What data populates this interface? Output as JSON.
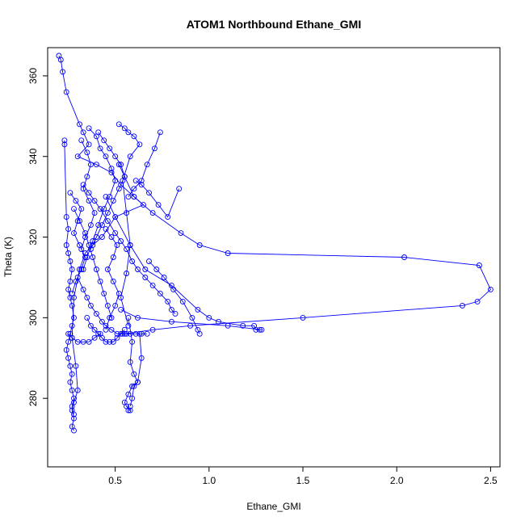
{
  "chart_data": {
    "type": "line",
    "title": "ATOM1 Northbound Ethane_GMI",
    "xlabel": "Ethane_GMI",
    "ylabel": "Theta (K)",
    "xlim": [
      0.14,
      2.55
    ],
    "ylim": [
      263,
      367
    ],
    "xticks": [
      0.5,
      1.0,
      1.5,
      2.0,
      2.5
    ],
    "xtick_labels": [
      "0.5",
      "1.0",
      "1.5",
      "2.0",
      "2.5"
    ],
    "yticks": [
      280,
      300,
      320,
      340,
      360
    ],
    "ytick_labels": [
      "280",
      "300",
      "320",
      "340",
      "360"
    ],
    "grid": false,
    "legend": "none",
    "series_color": "#0000ff",
    "series": [
      {
        "x": [
          0.2,
          0.21,
          0.22,
          0.24,
          0.31,
          0.33,
          0.36,
          0.3,
          0.4,
          0.48,
          0.53,
          0.6,
          0.65,
          0.5,
          0.43,
          0.38,
          0.34,
          0.31,
          0.28,
          0.27,
          0.29,
          0.3,
          0.28,
          0.27,
          0.28,
          0.27,
          0.28
        ],
        "y": [
          365,
          364,
          361,
          356,
          348,
          346,
          343,
          340,
          338,
          336,
          333,
          330,
          328,
          325,
          320,
          318,
          316,
          312,
          305,
          295,
          288,
          282,
          279,
          277,
          275,
          273,
          272
        ]
      },
      {
        "x": [
          0.23,
          0.23,
          0.24,
          0.25,
          0.24,
          0.25,
          0.26,
          0.27,
          0.26,
          0.25,
          0.26,
          0.27,
          0.28,
          0.27,
          0.26,
          0.25,
          0.24,
          0.25,
          0.26,
          0.27,
          0.26,
          0.27,
          0.28,
          0.27,
          0.28
        ],
        "y": [
          344,
          343,
          325,
          322,
          318,
          316,
          314,
          312,
          309,
          307,
          305,
          303,
          300,
          298,
          296,
          294,
          292,
          290,
          288,
          286,
          284,
          282,
          280,
          278,
          276
        ]
      },
      {
        "x": [
          0.52,
          0.55,
          0.6,
          0.7,
          0.85,
          0.95,
          1.1,
          2.04,
          2.44,
          2.5,
          2.43,
          2.35,
          1.5,
          0.9,
          0.7,
          0.55
        ],
        "y": [
          338,
          335,
          330,
          326,
          321,
          318,
          316,
          315,
          313,
          307,
          304,
          303,
          300,
          298,
          297,
          296
        ]
      },
      {
        "x": [
          0.45,
          0.5,
          0.58,
          0.66,
          0.8,
          0.94,
          1.0,
          1.05,
          1.18,
          1.24,
          1.25,
          1.27,
          1.28,
          1.1,
          0.8,
          0.62,
          0.53
        ],
        "y": [
          330,
          325,
          318,
          312,
          308,
          302,
          300,
          299,
          298,
          298,
          297,
          297,
          297,
          298,
          299,
          300,
          302
        ]
      },
      {
        "x": [
          0.52,
          0.55,
          0.57,
          0.6,
          0.63,
          0.58,
          0.54,
          0.56,
          0.58,
          0.56,
          0.53,
          0.57
        ],
        "y": [
          348,
          347,
          346,
          345,
          343,
          340,
          334,
          326,
          318,
          311,
          305,
          298
        ]
      },
      {
        "x": [
          0.57,
          0.59,
          0.58,
          0.6,
          0.62,
          0.59,
          0.57,
          0.55,
          0.56,
          0.58,
          0.57
        ],
        "y": [
          300,
          294,
          289,
          286,
          284,
          283,
          281,
          279,
          278,
          277,
          277
        ]
      },
      {
        "x": [
          0.63,
          0.64,
          0.62,
          0.6,
          0.59,
          0.58
        ],
        "y": [
          296,
          290,
          284,
          283,
          280,
          278
        ]
      },
      {
        "x": [
          0.36,
          0.4,
          0.42,
          0.45,
          0.48,
          0.5,
          0.47,
          0.44,
          0.41,
          0.38,
          0.35,
          0.33
        ],
        "y": [
          347,
          345,
          342,
          340,
          337,
          334,
          330,
          327,
          323,
          319,
          315,
          312
        ]
      },
      {
        "x": [
          0.33,
          0.36,
          0.39,
          0.42,
          0.46,
          0.5,
          0.53,
          0.56,
          0.59,
          0.62,
          0.66,
          0.7,
          0.74,
          0.78,
          0.8,
          0.82
        ],
        "y": [
          333,
          331,
          329,
          327,
          324,
          321,
          319,
          317,
          314,
          312,
          310,
          308,
          306,
          304,
          302,
          301
        ]
      },
      {
        "x": [
          0.3,
          0.33,
          0.35,
          0.37,
          0.4,
          0.43,
          0.45,
          0.48,
          0.51,
          0.54,
          0.56,
          0.58,
          0.61,
          0.64,
          0.67
        ],
        "y": [
          310,
          307,
          305,
          303,
          301,
          299,
          298,
          297,
          296,
          296,
          296,
          296,
          296,
          296,
          296
        ]
      },
      {
        "x": [
          0.41,
          0.44,
          0.47,
          0.5,
          0.53,
          0.55,
          0.52,
          0.49,
          0.46,
          0.43,
          0.4,
          0.37
        ],
        "y": [
          346,
          344,
          342,
          340,
          338,
          335,
          332,
          329,
          326,
          323,
          320,
          317
        ]
      },
      {
        "x": [
          0.35,
          0.37,
          0.39,
          0.41,
          0.43,
          0.45,
          0.47,
          0.49,
          0.51,
          0.53,
          0.55
        ],
        "y": [
          300,
          298,
          297,
          296,
          295,
          294,
          294,
          294,
          295,
          296,
          297
        ]
      },
      {
        "x": [
          0.28,
          0.31,
          0.34,
          0.36,
          0.38,
          0.4,
          0.42,
          0.44,
          0.46,
          0.48
        ],
        "y": [
          327,
          324,
          321,
          318,
          315,
          312,
          309,
          306,
          303,
          300
        ]
      },
      {
        "x": [
          0.68,
          0.72,
          0.76,
          0.81,
          0.86,
          0.91,
          0.94,
          0.95
        ],
        "y": [
          314,
          312,
          310,
          307,
          304,
          300,
          297,
          296
        ]
      },
      {
        "x": [
          0.57,
          0.6,
          0.64,
          0.67,
          0.71,
          0.74
        ],
        "y": [
          330,
          332,
          334,
          338,
          342,
          346
        ]
      },
      {
        "x": [
          0.61,
          0.64,
          0.68,
          0.73,
          0.78,
          0.84
        ],
        "y": [
          334,
          333,
          331,
          328,
          325,
          332
        ]
      },
      {
        "x": [
          0.26,
          0.29,
          0.32,
          0.3,
          0.28,
          0.31,
          0.34,
          0.32,
          0.29,
          0.27
        ],
        "y": [
          331,
          329,
          327,
          324,
          321,
          318,
          315,
          312,
          309,
          306
        ]
      },
      {
        "x": [
          0.32,
          0.35,
          0.37,
          0.35,
          0.33,
          0.36,
          0.39,
          0.37,
          0.34,
          0.32
        ],
        "y": [
          344,
          341,
          338,
          335,
          332,
          329,
          326,
          323,
          320,
          317
        ]
      },
      {
        "x": [
          0.45,
          0.48,
          0.51,
          0.49,
          0.46,
          0.49,
          0.52,
          0.5,
          0.47,
          0.45
        ],
        "y": [
          322,
          320,
          318,
          315,
          312,
          309,
          306,
          303,
          300,
          297
        ]
      },
      {
        "x": [
          0.25,
          0.27,
          0.3,
          0.33,
          0.36,
          0.39,
          0.42
        ],
        "y": [
          296,
          295,
          294,
          294,
          294,
          295,
          296
        ]
      }
    ]
  }
}
